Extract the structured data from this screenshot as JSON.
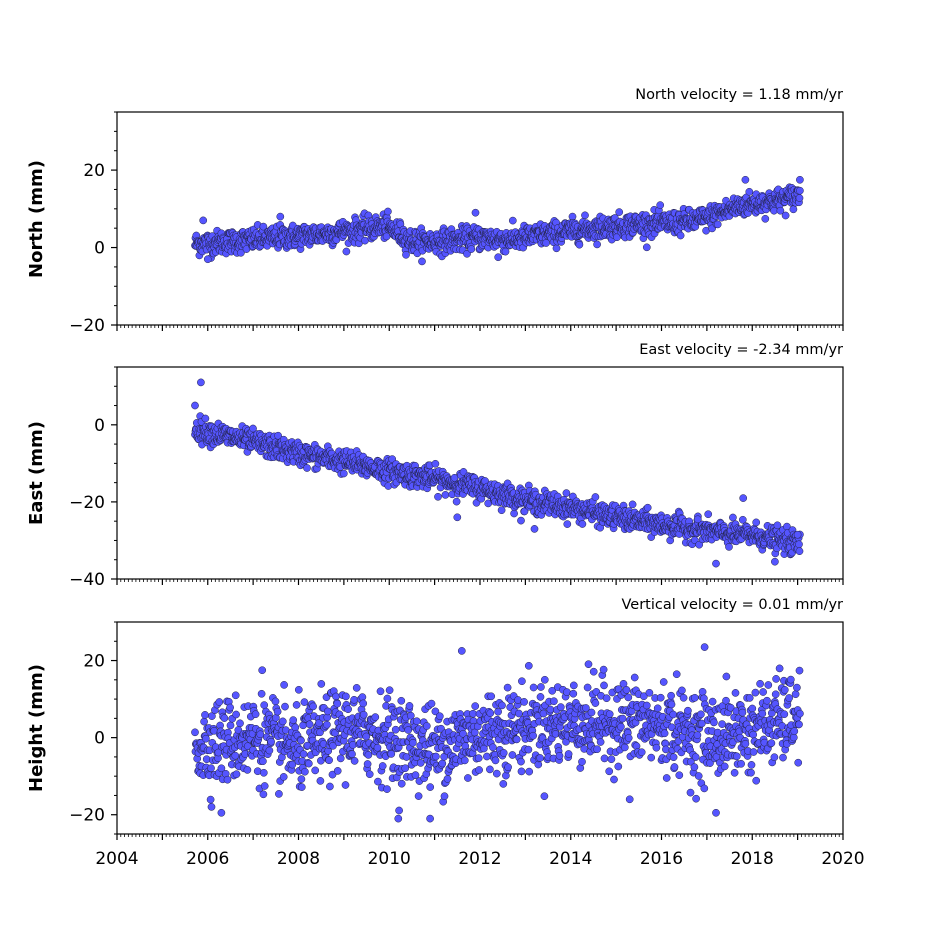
{
  "chart_data": [
    {
      "type": "scatter",
      "title": "North velocity = 1.18 mm/yr",
      "ylabel": "North (mm)",
      "xlim": [
        2004,
        2020
      ],
      "ylim": [
        -20,
        35
      ],
      "yticks": [
        -20,
        0,
        20
      ],
      "ytick_labels": [
        "−20",
        "0",
        "20"
      ],
      "point_color": "#5555ff",
      "series": [
        {
          "values_anchor_x": [
            2005.72,
            2006.5,
            2007.5,
            2008.5,
            2009.3,
            2009.9,
            2010.1,
            2010.5,
            2011.0,
            2012.0,
            2012.7,
            2013.5,
            2014.5,
            2015.5,
            2016.5,
            2017.0,
            2017.3,
            2017.8,
            2018.5,
            2019.05
          ],
          "values_anchor_y": [
            1.0,
            1.5,
            2.5,
            3.5,
            4.5,
            5.5,
            4.5,
            1.5,
            1.5,
            2.5,
            2.0,
            3.5,
            5.0,
            6.0,
            6.5,
            7.5,
            9.0,
            11.0,
            12.0,
            13.5
          ],
          "scatter_sd": 1.5,
          "outliers": [
            [
              2005.9,
              7.0
            ],
            [
              2007.6,
              8.0
            ],
            [
              2011.9,
              9.0
            ],
            [
              2012.4,
              -2.5
            ],
            [
              2017.85,
              17.5
            ],
            [
              2019.05,
              17.5
            ],
            [
              2006.0,
              -3.0
            ]
          ]
        }
      ]
    },
    {
      "type": "scatter",
      "title": "East velocity = -2.34 mm/yr",
      "ylabel": "East (mm)",
      "xlim": [
        2004,
        2020
      ],
      "ylim": [
        -40,
        15
      ],
      "yticks": [
        -40,
        -20,
        0
      ],
      "ytick_labels": [
        "−40",
        "−20",
        "0"
      ],
      "point_color": "#5555ff",
      "series": [
        {
          "values_anchor_x": [
            2005.72,
            2007.0,
            2008.0,
            2009.0,
            2010.0,
            2011.0,
            2012.0,
            2013.0,
            2014.0,
            2015.0,
            2016.0,
            2017.0,
            2017.5,
            2018.0,
            2019.05
          ],
          "values_anchor_y": [
            -1.0,
            -4.5,
            -7.5,
            -9.5,
            -12.0,
            -14.0,
            -16.5,
            -19.5,
            -21.5,
            -24.0,
            -26.0,
            -27.5,
            -28.5,
            -28.5,
            -31.0
          ],
          "scatter_sd": 1.5,
          "outliers": [
            [
              2005.85,
              11.0
            ],
            [
              2005.72,
              5.0
            ],
            [
              2011.5,
              -24.0
            ],
            [
              2013.2,
              -27.0
            ],
            [
              2016.8,
              -24.5
            ],
            [
              2017.2,
              -36.0
            ],
            [
              2017.8,
              -19.0
            ],
            [
              2018.5,
              -35.5
            ],
            [
              2019.0,
              -28.5
            ]
          ]
        }
      ]
    },
    {
      "type": "scatter",
      "title": "Vertical velocity = 0.01 mm/yr",
      "ylabel": "Height (mm)",
      "xlim": [
        2004,
        2020
      ],
      "ylim": [
        -25,
        30
      ],
      "yticks": [
        -20,
        0,
        20
      ],
      "ytick_labels": [
        "−20",
        "0",
        "20"
      ],
      "xticks": [
        2004,
        2006,
        2008,
        2010,
        2012,
        2014,
        2016,
        2018,
        2020
      ],
      "xtick_labels": [
        "2004",
        "2006",
        "2008",
        "2010",
        "2012",
        "2014",
        "2016",
        "2018",
        "2020"
      ],
      "point_color": "#5555ff",
      "series": [
        {
          "values_anchor_x": [
            2005.72,
            2007.0,
            2008.0,
            2009.0,
            2010.0,
            2011.0,
            2012.0,
            2013.0,
            2014.0,
            2015.0,
            2016.0,
            2017.0,
            2018.0,
            2019.05
          ],
          "values_anchor_y": [
            -2.0,
            0.0,
            -3.0,
            2.0,
            0.0,
            -3.0,
            1.0,
            3.0,
            4.0,
            4.0,
            3.0,
            0.0,
            2.0,
            6.0
          ],
          "scatter_sd": 5.5,
          "outliers": [
            [
              2011.6,
              22.5
            ],
            [
              2016.95,
              23.5
            ],
            [
              2010.2,
              -21.0
            ],
            [
              2010.9,
              -21.0
            ],
            [
              2006.3,
              -19.5
            ],
            [
              2017.2,
              -19.5
            ],
            [
              2015.3,
              -16.0
            ],
            [
              2007.2,
              17.5
            ]
          ]
        }
      ]
    }
  ]
}
